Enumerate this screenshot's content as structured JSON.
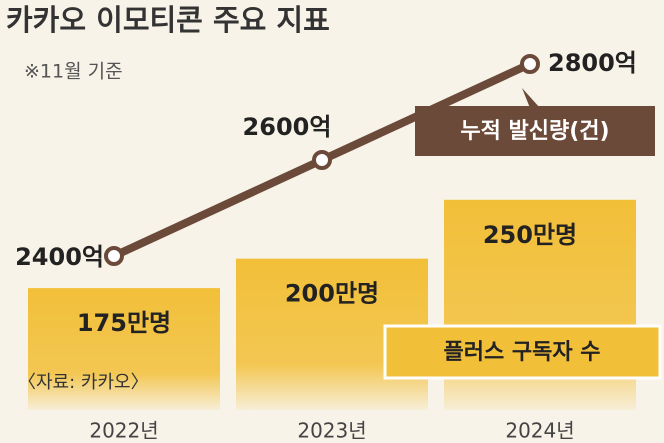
{
  "chart_data": {
    "type": "bar",
    "title": "카카오 이모티콘 주요 지표",
    "subtitle": "※11월 기준",
    "source": "〈자료: 카카오〉",
    "categories": [
      "2022년",
      "2023년",
      "2024년"
    ],
    "ylim": [
      80,
      260
    ],
    "y2lim": [
      2100,
      2850
    ],
    "series": [
      {
        "name": "플러스 구독자 수",
        "type": "bar",
        "color": "#f2bf38",
        "values": [
          175,
          200,
          250
        ],
        "value_labels": [
          "175만명",
          "200만명",
          "250만명"
        ]
      },
      {
        "name": "누적 발신량(건)",
        "type": "line",
        "axis": "y2",
        "color": "#6b4a3a",
        "values": [
          2400,
          2600,
          2800
        ],
        "value_labels": [
          "2400억",
          "2600억",
          "2800억"
        ]
      }
    ]
  }
}
